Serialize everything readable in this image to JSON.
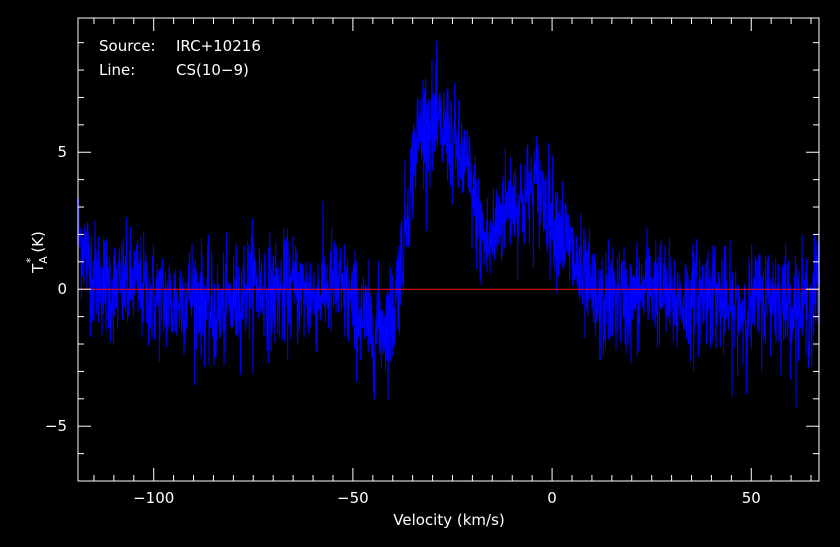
{
  "chart_data": {
    "type": "line",
    "title": "",
    "annotations": [
      {
        "key": "Source:",
        "value": "IRC+10216"
      },
      {
        "key": "Line:",
        "value": "CS(10−9)"
      }
    ],
    "xlabel": "Velocity (km/s)",
    "ylabel_main": "T",
    "ylabel_sup": "*",
    "ylabel_sub": "A",
    "ylabel_unit": "(K)",
    "xlim": [
      -119,
      67
    ],
    "ylim": [
      -7,
      9.9
    ],
    "x_ticks": [
      {
        "value": -100,
        "label": "−100"
      },
      {
        "value": -50,
        "label": "−50"
      },
      {
        "value": 0,
        "label": "0"
      },
      {
        "value": 50,
        "label": "50"
      }
    ],
    "y_ticks": [
      {
        "value": -5,
        "label": "−5"
      },
      {
        "value": 0,
        "label": "0"
      },
      {
        "value": 5,
        "label": "5"
      }
    ],
    "baseline": 0,
    "colors": {
      "spectrum": "#0000ff",
      "baseline": "#ff0000",
      "axes": "#ffffff",
      "background": "#000000"
    },
    "grid": false,
    "series": [
      {
        "velocity_km_s": [
          -119,
          -115,
          -110,
          -105,
          -100,
          -95,
          -90,
          -85,
          -80,
          -75,
          -70,
          -65,
          -60,
          -55,
          -50,
          -45,
          -42,
          -40,
          -38,
          -36,
          -34,
          -32,
          -30,
          -28,
          -26,
          -24,
          -22,
          -20,
          -18,
          -16,
          -14,
          -12,
          -10,
          -8,
          -6,
          -4,
          -2,
          0,
          2,
          4,
          6,
          8,
          10,
          12,
          15,
          20,
          25,
          30,
          35,
          40,
          45,
          50,
          55,
          60,
          65,
          67
        ],
        "antenna_temperature_K": [
          2.0,
          0.5,
          0.0,
          0.2,
          -0.3,
          -0.5,
          0.0,
          -1.0,
          -0.5,
          0.3,
          -0.2,
          0.0,
          -0.3,
          0.2,
          -0.6,
          -1.5,
          -1.3,
          -1.0,
          1.0,
          3.5,
          5.5,
          6.2,
          6.0,
          5.8,
          5.6,
          5.0,
          4.5,
          3.5,
          2.0,
          1.5,
          2.3,
          3.0,
          3.3,
          3.1,
          3.5,
          3.8,
          3.2,
          2.7,
          2.3,
          1.5,
          0.8,
          0.2,
          -0.3,
          -0.8,
          -0.2,
          -0.5,
          0.3,
          -0.5,
          -0.4,
          0.0,
          -0.9,
          -0.6,
          -0.2,
          -0.5,
          -0.7,
          0.6
        ]
      }
    ]
  }
}
